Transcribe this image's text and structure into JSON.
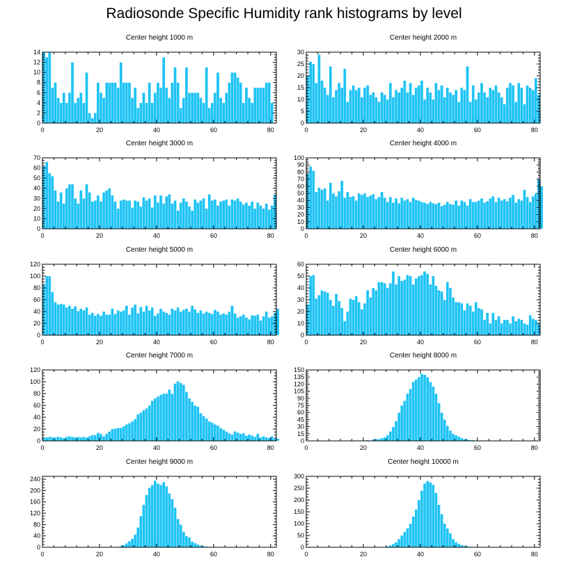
{
  "title": "Radiosonde Specific Humidity rank histograms by level",
  "colors": {
    "bar": "#1ec3f5",
    "bar_edge": "#ffffff",
    "axis": "#000000"
  },
  "chart_data": [
    {
      "type": "bar",
      "title": "Center height 1000 m",
      "x_ticks": [
        0,
        20,
        40,
        60,
        80
      ],
      "y_ticks": [
        0,
        2,
        4,
        6,
        8,
        10,
        12,
        14
      ],
      "ylim": [
        0,
        14
      ],
      "xlim": [
        0,
        82
      ],
      "values": [
        14,
        13,
        14,
        7,
        8,
        5,
        4,
        6,
        4,
        6,
        12,
        4,
        5,
        6,
        4,
        10,
        2,
        1,
        2,
        8,
        6,
        5,
        8,
        8,
        8,
        8,
        7,
        12,
        8,
        8,
        8,
        5,
        7,
        3,
        4,
        6,
        4,
        8,
        4,
        6,
        8,
        7,
        13,
        7,
        5,
        8,
        11,
        8,
        3,
        5,
        11,
        6,
        6,
        6,
        6,
        5,
        4,
        11,
        3,
        4,
        6,
        10,
        5,
        4,
        6,
        8,
        10,
        10,
        9,
        8,
        4,
        7,
        5,
        4,
        7,
        7,
        7,
        7,
        8,
        8,
        4
      ]
    },
    {
      "type": "bar",
      "title": "Center height 2000 m",
      "x_ticks": [
        0,
        20,
        40,
        60,
        80
      ],
      "y_ticks": [
        0,
        5,
        10,
        15,
        20,
        25,
        30
      ],
      "ylim": [
        0,
        30
      ],
      "xlim": [
        0,
        82
      ],
      "values": [
        20,
        26,
        25,
        17,
        29,
        18,
        15,
        12,
        24,
        11,
        14,
        17,
        15,
        23,
        9,
        14,
        16,
        14,
        15,
        11,
        15,
        16,
        12,
        13,
        11,
        9,
        13,
        12,
        10,
        17,
        11,
        14,
        13,
        15,
        18,
        13,
        17,
        12,
        15,
        16,
        18,
        10,
        15,
        13,
        10,
        17,
        14,
        16,
        11,
        15,
        13,
        12,
        14,
        9,
        15,
        14,
        24,
        9,
        16,
        10,
        13,
        17,
        13,
        11,
        15,
        14,
        16,
        13,
        11,
        8,
        15,
        17,
        16,
        9,
        17,
        15,
        8,
        16,
        15,
        14,
        19,
        12
      ]
    },
    {
      "type": "bar",
      "title": "Center height 3000 m",
      "x_ticks": [
        0,
        20,
        40,
        60,
        80
      ],
      "y_ticks": [
        0,
        10,
        20,
        30,
        40,
        50,
        60,
        70
      ],
      "ylim": [
        0,
        70
      ],
      "xlim": [
        0,
        82
      ],
      "values": [
        62,
        66,
        55,
        52,
        38,
        27,
        36,
        25,
        40,
        44,
        44,
        30,
        25,
        38,
        30,
        44,
        36,
        27,
        28,
        33,
        27,
        36,
        38,
        40,
        33,
        27,
        20,
        28,
        29,
        28,
        28,
        21,
        28,
        27,
        22,
        31,
        28,
        30,
        21,
        33,
        26,
        33,
        25,
        32,
        34,
        25,
        28,
        18,
        26,
        30,
        27,
        22,
        18,
        29,
        26,
        28,
        30,
        20,
        34,
        28,
        29,
        23,
        27,
        28,
        29,
        23,
        29,
        28,
        30,
        27,
        24,
        26,
        23,
        27,
        20,
        26,
        23,
        20,
        25,
        19,
        23,
        34
      ]
    },
    {
      "type": "bar",
      "title": "Center height 4000 m",
      "x_ticks": [
        0,
        20,
        40,
        60,
        80
      ],
      "y_ticks": [
        0,
        10,
        20,
        30,
        40,
        50,
        60,
        70,
        80,
        90,
        100
      ],
      "ylim": [
        0,
        100
      ],
      "xlim": [
        0,
        82
      ],
      "values": [
        78,
        88,
        82,
        52,
        58,
        55,
        57,
        40,
        65,
        50,
        46,
        53,
        68,
        44,
        52,
        45,
        46,
        40,
        50,
        48,
        50,
        45,
        47,
        49,
        42,
        45,
        52,
        44,
        38,
        45,
        37,
        43,
        36,
        44,
        40,
        42,
        38,
        44,
        41,
        40,
        38,
        37,
        35,
        38,
        36,
        35,
        37,
        32,
        34,
        38,
        35,
        34,
        40,
        33,
        40,
        38,
        33,
        42,
        38,
        38,
        40,
        43,
        37,
        39,
        43,
        46,
        38,
        44,
        40,
        42,
        39,
        44,
        48,
        37,
        42,
        40,
        55,
        45,
        38,
        46,
        50,
        70,
        60
      ]
    },
    {
      "type": "bar",
      "title": "Center height 5000 m",
      "x_ticks": [
        0,
        20,
        40,
        60,
        80
      ],
      "y_ticks": [
        0,
        20,
        40,
        60,
        80,
        100,
        120
      ],
      "ylim": [
        0,
        120
      ],
      "xlim": [
        0,
        82
      ],
      "values": [
        86,
        100,
        100,
        73,
        56,
        52,
        53,
        52,
        47,
        50,
        45,
        49,
        41,
        45,
        42,
        47,
        35,
        38,
        33,
        36,
        33,
        40,
        35,
        35,
        45,
        36,
        42,
        40,
        42,
        50,
        35,
        47,
        52,
        37,
        48,
        40,
        50,
        42,
        47,
        33,
        37,
        45,
        40,
        38,
        35,
        45,
        42,
        47,
        40,
        43,
        45,
        40,
        50,
        44,
        38,
        42,
        37,
        40,
        38,
        36,
        43,
        40,
        35,
        37,
        35,
        40,
        50,
        37,
        30,
        32,
        35,
        30,
        27,
        34,
        33,
        35,
        25,
        32,
        40,
        30,
        32,
        38,
        45,
        48
      ]
    },
    {
      "type": "bar",
      "title": "Center height 6000 m",
      "x_ticks": [
        0,
        20,
        40,
        60,
        80
      ],
      "y_ticks": [
        0,
        10,
        20,
        30,
        40,
        50,
        60
      ],
      "ylim": [
        0,
        60
      ],
      "xlim": [
        0,
        82
      ],
      "values": [
        26,
        50,
        51,
        31,
        34,
        38,
        37,
        36,
        30,
        25,
        35,
        29,
        23,
        12,
        20,
        31,
        30,
        33,
        28,
        22,
        27,
        38,
        32,
        40,
        38,
        45,
        45,
        44,
        40,
        44,
        54,
        43,
        50,
        46,
        47,
        51,
        50,
        43,
        48,
        50,
        51,
        54,
        52,
        43,
        50,
        42,
        38,
        37,
        30,
        45,
        40,
        32,
        28,
        28,
        27,
        21,
        27,
        25,
        20,
        28,
        23,
        22,
        13,
        19,
        10,
        19,
        13,
        16,
        10,
        13,
        13,
        10,
        16,
        12,
        14,
        13,
        10,
        9,
        17,
        14,
        13,
        10
      ]
    },
    {
      "type": "bar",
      "title": "Center height 7000 m",
      "x_ticks": [
        0,
        20,
        40,
        60,
        80
      ],
      "y_ticks": [
        0,
        20,
        40,
        60,
        80,
        100,
        120
      ],
      "ylim": [
        0,
        120
      ],
      "xlim": [
        0,
        82
      ],
      "values": [
        5,
        6,
        7,
        6,
        6,
        7,
        6,
        5,
        7,
        8,
        7,
        6,
        7,
        6,
        7,
        6,
        8,
        10,
        10,
        14,
        12,
        8,
        12,
        16,
        20,
        21,
        22,
        22,
        25,
        28,
        30,
        33,
        37,
        45,
        48,
        52,
        55,
        60,
        68,
        72,
        75,
        78,
        80,
        80,
        87,
        80,
        97,
        101,
        98,
        95,
        83,
        72,
        66,
        60,
        58,
        47,
        42,
        38,
        33,
        31,
        28,
        26,
        22,
        19,
        16,
        13,
        11,
        16,
        14,
        12,
        13,
        9,
        11,
        9,
        7,
        12,
        6,
        8,
        6,
        5,
        8,
        4,
        4
      ]
    },
    {
      "type": "bar",
      "title": "Center height 8000 m",
      "x_ticks": [
        0,
        20,
        40,
        60,
        80
      ],
      "y_ticks": [
        0,
        15,
        30,
        45,
        60,
        75,
        90,
        105,
        120,
        135,
        150
      ],
      "ylim": [
        0,
        150
      ],
      "xlim": [
        0,
        82
      ],
      "values": [
        0,
        0,
        0,
        0,
        0,
        0,
        0,
        0,
        0,
        0,
        0,
        0,
        0,
        0,
        0,
        0,
        0,
        0,
        1,
        1,
        1,
        2,
        1,
        3,
        4,
        4,
        6,
        8,
        12,
        20,
        30,
        42,
        60,
        75,
        85,
        100,
        110,
        125,
        130,
        135,
        142,
        140,
        135,
        125,
        115,
        100,
        80,
        60,
        45,
        32,
        22,
        15,
        12,
        9,
        6,
        4,
        3,
        2,
        2,
        1,
        1,
        1,
        0,
        0,
        0,
        0,
        0,
        0,
        0,
        0,
        0,
        0,
        0,
        0,
        0,
        0,
        0,
        0,
        0,
        0,
        0
      ]
    },
    {
      "type": "bar",
      "title": "Center height 9000 m",
      "x_ticks": [
        0,
        20,
        40,
        60,
        80
      ],
      "y_ticks": [
        0,
        40,
        80,
        120,
        160,
        200,
        240
      ],
      "ylim": [
        0,
        250
      ],
      "xlim": [
        0,
        82
      ],
      "values": [
        0,
        0,
        0,
        0,
        0,
        0,
        0,
        0,
        0,
        0,
        0,
        0,
        0,
        0,
        0,
        0,
        0,
        0,
        0,
        0,
        0,
        0,
        0,
        0,
        0,
        1,
        2,
        4,
        8,
        14,
        22,
        30,
        45,
        70,
        110,
        150,
        185,
        210,
        220,
        235,
        225,
        220,
        230,
        215,
        190,
        170,
        140,
        100,
        80,
        55,
        40,
        35,
        20,
        15,
        10,
        6,
        4,
        3,
        2,
        1,
        1,
        0,
        0,
        0,
        0,
        0,
        0,
        0,
        0,
        0,
        0,
        0,
        0,
        0,
        0,
        0,
        0,
        0,
        0,
        0,
        0
      ]
    },
    {
      "type": "bar",
      "title": "Center height 10000 m",
      "x_ticks": [
        0,
        20,
        40,
        60,
        80
      ],
      "y_ticks": [
        0,
        50,
        100,
        150,
        200,
        250,
        300
      ],
      "ylim": [
        0,
        300
      ],
      "xlim": [
        0,
        82
      ],
      "values": [
        0,
        0,
        0,
        0,
        0,
        0,
        0,
        0,
        0,
        0,
        0,
        0,
        0,
        0,
        0,
        0,
        0,
        0,
        0,
        0,
        0,
        0,
        0,
        0,
        0,
        0,
        1,
        2,
        4,
        8,
        14,
        22,
        35,
        50,
        65,
        80,
        100,
        130,
        160,
        200,
        240,
        270,
        280,
        275,
        265,
        230,
        180,
        140,
        100,
        80,
        60,
        35,
        22,
        15,
        10,
        6,
        4,
        3,
        2,
        1,
        1,
        0,
        0,
        0,
        0,
        0,
        0,
        0,
        0,
        0,
        0,
        0,
        0,
        0,
        0,
        0,
        0,
        0,
        0,
        0,
        0
      ]
    }
  ]
}
